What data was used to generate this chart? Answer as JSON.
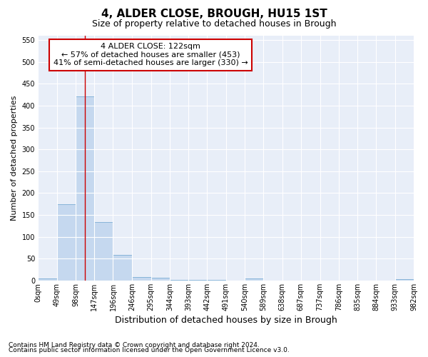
{
  "title": "4, ALDER CLOSE, BROUGH, HU15 1ST",
  "subtitle": "Size of property relative to detached houses in Brough",
  "xlabel": "Distribution of detached houses by size in Brough",
  "ylabel": "Number of detached properties",
  "footnote1": "Contains HM Land Registry data © Crown copyright and database right 2024.",
  "footnote2": "Contains public sector information licensed under the Open Government Licence v3.0.",
  "annotation_title": "4 ALDER CLOSE: 122sqm",
  "annotation_line1": "← 57% of detached houses are smaller (453)",
  "annotation_line2": "41% of semi-detached houses are larger (330) →",
  "property_size": 122,
  "bin_edges": [
    0,
    49,
    98,
    147,
    196,
    246,
    295,
    344,
    393,
    442,
    491,
    540,
    589,
    638,
    687,
    737,
    786,
    835,
    884,
    933,
    982
  ],
  "bar_heights": [
    5,
    175,
    422,
    133,
    58,
    8,
    7,
    2,
    2,
    2,
    0,
    5,
    0,
    0,
    0,
    0,
    0,
    0,
    0,
    3
  ],
  "bar_color": "#c5d8ef",
  "bar_edge_color": "#7aadd4",
  "line_color": "#cc0000",
  "annotation_box_color": "#cc0000",
  "plot_bg_color": "#e8eef8",
  "fig_bg_color": "#ffffff",
  "grid_color": "#ffffff",
  "ylim": [
    0,
    560
  ],
  "yticks": [
    0,
    50,
    100,
    150,
    200,
    250,
    300,
    350,
    400,
    450,
    500,
    550
  ],
  "title_fontsize": 11,
  "subtitle_fontsize": 9,
  "xlabel_fontsize": 9,
  "ylabel_fontsize": 8,
  "tick_fontsize": 7,
  "footnote_fontsize": 6.5,
  "annotation_fontsize": 8
}
